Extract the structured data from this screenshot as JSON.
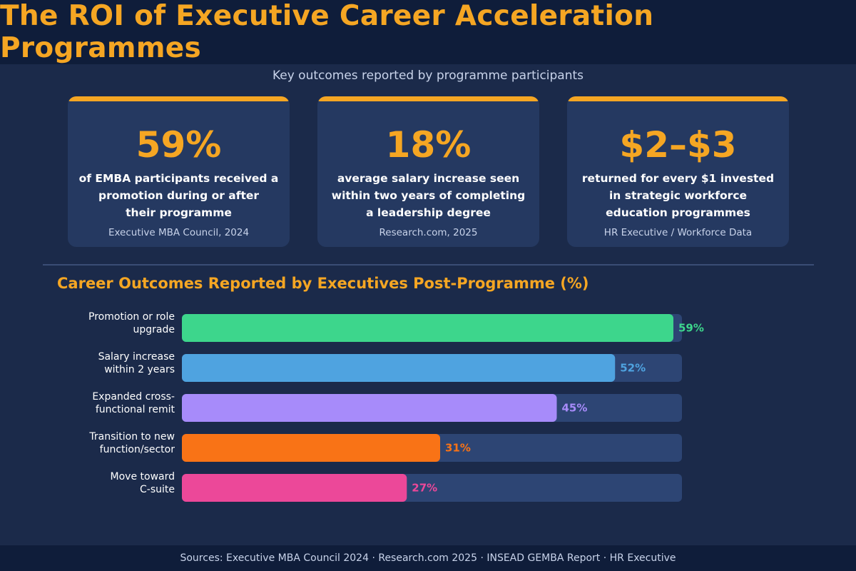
{
  "header": {
    "title": "The ROI of Executive Career Acceleration Programmes"
  },
  "subtitle": "Key outcomes reported by programme participants",
  "cards": [
    {
      "stat": "59%",
      "lines": [
        "of EMBA participants received a",
        "promotion during or after",
        "their programme"
      ],
      "source": "Executive MBA Council, 2024"
    },
    {
      "stat": "18%",
      "lines": [
        "average salary increase seen",
        "within two years of completing",
        "a leadership degree"
      ],
      "source": "Research.com, 2025"
    },
    {
      "stat": "$2–$3",
      "lines": [
        "returned for every $1 invested",
        "in strategic workforce",
        "education programmes"
      ],
      "source": "HR Executive / Workforce Data"
    }
  ],
  "chart_data": {
    "type": "bar",
    "orientation": "horizontal",
    "title": "Career Outcomes Reported by Executives Post-Programme (%)",
    "categories": [
      [
        "Promotion or role",
        "upgrade"
      ],
      [
        "Salary increase",
        "within 2 years"
      ],
      [
        "Expanded cross-",
        "functional remit"
      ],
      [
        "Transition to new",
        "function/sector"
      ],
      [
        "Move toward",
        "C-suite"
      ]
    ],
    "values": [
      59,
      52,
      45,
      31,
      27
    ],
    "value_labels": [
      "59%",
      "52%",
      "45%",
      "31%",
      "27%"
    ],
    "colors": [
      "#3dd68c",
      "#4fa3e0",
      "#a78bfa",
      "#f97316",
      "#ec4899"
    ],
    "track_color": "#2d4574",
    "xlim": [
      0,
      60
    ]
  },
  "footer": "Sources: Executive MBA Council 2024 · Research.com 2025 · INSEAD GEMBA Report · HR Executive"
}
